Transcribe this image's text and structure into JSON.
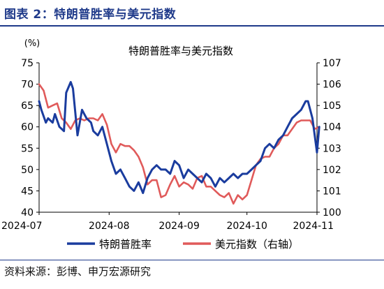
{
  "header": {
    "title": "图表 2：特朗普胜率与美元指数"
  },
  "footer": {
    "source": "资料来源：彭博、申万宏源研究"
  },
  "colors": {
    "blue_series": "#1a3c9e",
    "red_series": "#e05a5a",
    "axis": "#000000",
    "header": "#1f3a8a"
  },
  "chart_data": {
    "type": "line",
    "title": "特朗普胜率与美元指数",
    "x_ticks": [
      "2024-07",
      "2024-08",
      "2024-09",
      "2024-10",
      "2024-11"
    ],
    "x_range": [
      "2024-07-01",
      "2024-11-01"
    ],
    "y_left": {
      "unit": "(%)",
      "range": [
        40,
        75
      ],
      "ticks": [
        40,
        45,
        50,
        55,
        60,
        65,
        70,
        75
      ]
    },
    "y_right": {
      "range": [
        100,
        107
      ],
      "ticks": [
        100,
        101,
        102,
        103,
        104,
        105,
        106,
        107
      ]
    },
    "grid": false,
    "legend_position": "bottom",
    "series": [
      {
        "name": "特朗普胜率",
        "axis": "left",
        "color": "#1a3c9e",
        "x": [
          "2024-07-01",
          "2024-07-02",
          "2024-07-04",
          "2024-07-05",
          "2024-07-07",
          "2024-07-08",
          "2024-07-10",
          "2024-07-12",
          "2024-07-13",
          "2024-07-15",
          "2024-07-16",
          "2024-07-18",
          "2024-07-20",
          "2024-07-21",
          "2024-07-22",
          "2024-07-24",
          "2024-07-25",
          "2024-07-27",
          "2024-07-29",
          "2024-07-31",
          "2024-08-02",
          "2024-08-04",
          "2024-08-06",
          "2024-08-08",
          "2024-08-10",
          "2024-08-12",
          "2024-08-14",
          "2024-08-16",
          "2024-08-18",
          "2024-08-20",
          "2024-08-22",
          "2024-08-24",
          "2024-08-26",
          "2024-08-28",
          "2024-08-30",
          "2024-09-01",
          "2024-09-03",
          "2024-09-05",
          "2024-09-07",
          "2024-09-09",
          "2024-09-11",
          "2024-09-13",
          "2024-09-15",
          "2024-09-17",
          "2024-09-19",
          "2024-09-21",
          "2024-09-23",
          "2024-09-25",
          "2024-09-27",
          "2024-09-29",
          "2024-10-01",
          "2024-10-03",
          "2024-10-05",
          "2024-10-07",
          "2024-10-09",
          "2024-10-11",
          "2024-10-13",
          "2024-10-15",
          "2024-10-17",
          "2024-10-19",
          "2024-10-21",
          "2024-10-23",
          "2024-10-25",
          "2024-10-27",
          "2024-10-28",
          "2024-10-30",
          "2024-11-01",
          "2024-11-02"
        ],
        "values": [
          66,
          64,
          61,
          62,
          61,
          63,
          60,
          59,
          68,
          70.5,
          69,
          58,
          64,
          63,
          62,
          61,
          59,
          58,
          60,
          56,
          52,
          49,
          50,
          48,
          46,
          45,
          47,
          44.5,
          48,
          50,
          51,
          50,
          50,
          49,
          52,
          51,
          48,
          50,
          49,
          48,
          47,
          49,
          48,
          46,
          48,
          47,
          48,
          49,
          48,
          49,
          49,
          50,
          51,
          52,
          55,
          56,
          55,
          57,
          58,
          60,
          62,
          63,
          64,
          66,
          66,
          62,
          54,
          60
        ]
      },
      {
        "name": "美元指数（右轴）",
        "axis": "right",
        "color": "#e05a5a",
        "x": [
          "2024-07-01",
          "2024-07-03",
          "2024-07-05",
          "2024-07-07",
          "2024-07-09",
          "2024-07-11",
          "2024-07-13",
          "2024-07-15",
          "2024-07-17",
          "2024-07-19",
          "2024-07-21",
          "2024-07-23",
          "2024-07-25",
          "2024-07-27",
          "2024-07-29",
          "2024-07-31",
          "2024-08-02",
          "2024-08-04",
          "2024-08-06",
          "2024-08-08",
          "2024-08-10",
          "2024-08-12",
          "2024-08-14",
          "2024-08-16",
          "2024-08-18",
          "2024-08-20",
          "2024-08-22",
          "2024-08-24",
          "2024-08-26",
          "2024-08-28",
          "2024-08-30",
          "2024-09-01",
          "2024-09-03",
          "2024-09-05",
          "2024-09-07",
          "2024-09-09",
          "2024-09-11",
          "2024-09-13",
          "2024-09-15",
          "2024-09-17",
          "2024-09-19",
          "2024-09-21",
          "2024-09-23",
          "2024-09-25",
          "2024-09-27",
          "2024-09-29",
          "2024-10-01",
          "2024-10-03",
          "2024-10-05",
          "2024-10-07",
          "2024-10-09",
          "2024-10-11",
          "2024-10-13",
          "2024-10-15",
          "2024-10-17",
          "2024-10-19",
          "2024-10-21",
          "2024-10-23",
          "2024-10-25",
          "2024-10-27",
          "2024-10-29",
          "2024-10-31",
          "2024-11-02"
        ],
        "values": [
          106,
          105.7,
          104.9,
          105,
          105.1,
          104.4,
          104.2,
          103.9,
          104.3,
          104.4,
          104.3,
          104.4,
          104.4,
          104.3,
          104.6,
          104.1,
          103.2,
          102.8,
          103.2,
          103.1,
          103.1,
          102.9,
          102.6,
          102.1,
          101.3,
          101.5,
          101.5,
          100.7,
          100.8,
          101.3,
          101.7,
          101.2,
          101.4,
          101.3,
          101.1,
          101.6,
          101.7,
          101.2,
          101.2,
          101.0,
          100.8,
          100.7,
          100.9,
          100.4,
          100.8,
          100.6,
          100.8,
          101.5,
          102.2,
          102.5,
          102.6,
          102.6,
          103.0,
          103.2,
          103.6,
          103.6,
          103.9,
          104.2,
          104.3,
          104.3,
          104.3,
          103.9,
          104.0
        ]
      }
    ]
  }
}
